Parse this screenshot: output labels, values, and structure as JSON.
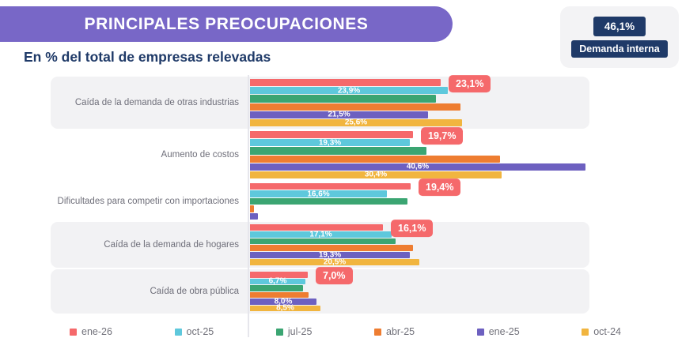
{
  "header": {
    "title": "PRINCIPALES PREOCUPACIONES",
    "subtitle": "En % del total de empresas relevadas",
    "badge": {
      "value": "46,1%",
      "label": "Demanda interna"
    }
  },
  "colors": {
    "banner": "#7867c7",
    "navy": "#1f3a68",
    "card_background": "#f2f2f4",
    "highlight_label_background": "#f5696b"
  },
  "chart_data": {
    "type": "bar",
    "orientation": "horizontal",
    "unit": "% del total de empresas relevadas",
    "xlim": [
      0,
      48
    ],
    "legend_position": "bottom",
    "series": [
      {
        "name": "ene-26",
        "color": "#f5696b",
        "label_style": "outside"
      },
      {
        "name": "oct-25",
        "color": "#5ec8dc",
        "label_style": "inside"
      },
      {
        "name": "jul-25",
        "color": "#3ba572",
        "label_style": "inside"
      },
      {
        "name": "abr-25",
        "color": "#ee7d31",
        "label_style": "inside"
      },
      {
        "name": "ene-25",
        "color": "#6d60c0",
        "label_style": "inside"
      },
      {
        "name": "oct-24",
        "color": "#f1b53f",
        "label_style": "inside"
      }
    ],
    "categories": [
      {
        "label": "Caída de la demanda de otras industrias",
        "shaded": true,
        "values": [
          23.1,
          23.9,
          22.5,
          25.5,
          21.5,
          25.6
        ],
        "labels": [
          "23,1%",
          "23,9%",
          null,
          null,
          "21,5%",
          "25,6%"
        ]
      },
      {
        "label": "Aumento de costos",
        "shaded": false,
        "values": [
          19.7,
          19.3,
          21.3,
          30.2,
          40.6,
          30.4
        ],
        "labels": [
          "19,7%",
          "19,3%",
          null,
          null,
          "40,6%",
          "30,4%"
        ]
      },
      {
        "label": "Dificultades para competir con importaciones",
        "shaded": false,
        "values": [
          19.4,
          16.6,
          19.0,
          0.5,
          1.0,
          null
        ],
        "labels": [
          "19,4%",
          "16,6%",
          null,
          null,
          null,
          null
        ]
      },
      {
        "label": "Caída de la demanda de hogares",
        "shaded": true,
        "values": [
          16.1,
          17.1,
          17.6,
          19.7,
          19.3,
          20.5
        ],
        "labels": [
          "16,1%",
          "17,1%",
          null,
          null,
          "19,3%",
          "20,5%"
        ]
      },
      {
        "label": "Caída de obra pública",
        "shaded": true,
        "values": [
          7.0,
          6.7,
          6.4,
          7.1,
          8.0,
          8.5
        ],
        "labels": [
          "7,0%",
          "6,7%",
          null,
          null,
          "8,0%",
          "8,5%"
        ]
      }
    ]
  }
}
